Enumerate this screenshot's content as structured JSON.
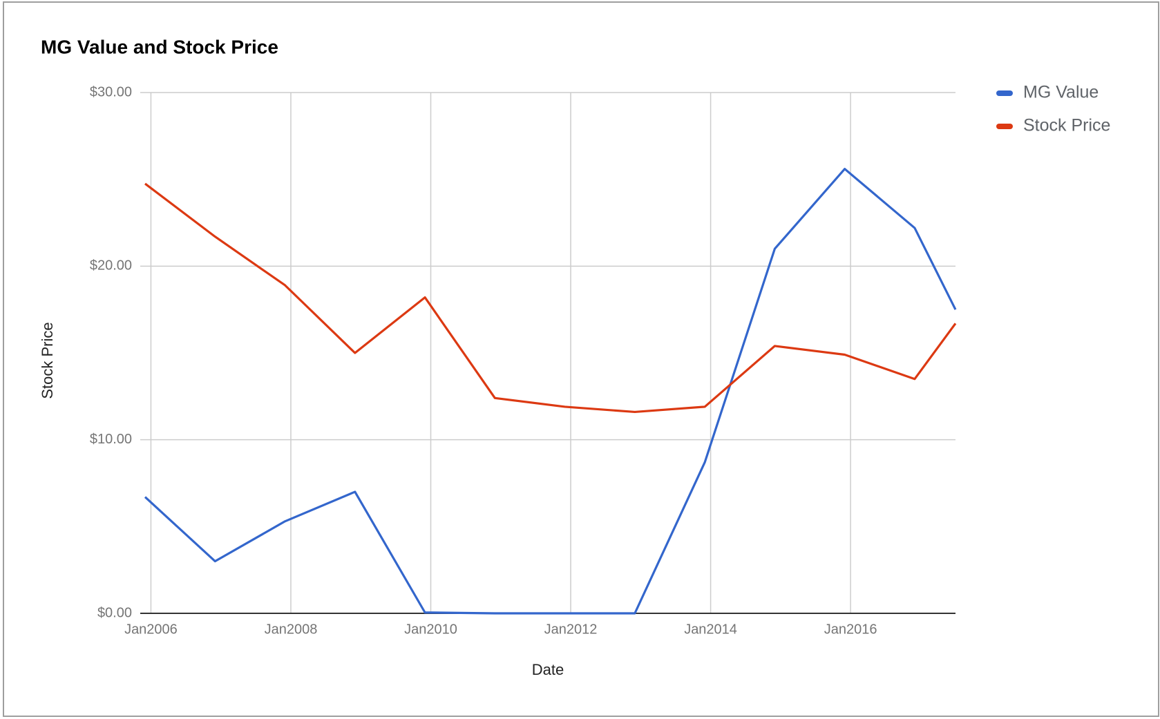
{
  "chart_data": {
    "type": "line",
    "title": "MG Value and Stock Price",
    "x_label": "Date",
    "y_label": "Stock Price",
    "x": [
      "2005-12",
      "2006-12",
      "2007-12",
      "2008-12",
      "2009-12",
      "2010-12",
      "2011-12",
      "2012-12",
      "2013-12",
      "2014-12",
      "2015-12",
      "2016-12",
      "2017-07"
    ],
    "series": [
      {
        "name": "MG Value",
        "color": "#3366cc",
        "values": [
          6.7,
          3.0,
          5.3,
          7.0,
          0.05,
          0.0,
          0.0,
          0.0,
          8.7,
          21.0,
          25.6,
          22.2,
          17.5
        ]
      },
      {
        "name": "Stock Price",
        "color": "#dc3912",
        "values": [
          24.75,
          21.7,
          18.9,
          15.0,
          18.2,
          12.4,
          11.9,
          11.6,
          11.9,
          15.4,
          14.9,
          13.5,
          16.7
        ]
      }
    ],
    "xlim": [
      "2005-12",
      "2017-07"
    ],
    "xticks": [
      {
        "value": "2006-01",
        "label": "Jan2006"
      },
      {
        "value": "2008-01",
        "label": "Jan2008"
      },
      {
        "value": "2010-01",
        "label": "Jan2010"
      },
      {
        "value": "2012-01",
        "label": "Jan2012"
      },
      {
        "value": "2014-01",
        "label": "Jan2014"
      },
      {
        "value": "2016-01",
        "label": "Jan2016"
      }
    ],
    "ylim": [
      0,
      30
    ],
    "yticks": [
      {
        "value": 0,
        "label": "$0.00"
      },
      {
        "value": 10,
        "label": "$10.00"
      },
      {
        "value": 20,
        "label": "$20.00"
      },
      {
        "value": 30,
        "label": "$30.00"
      }
    ],
    "grid": true,
    "legend": "right"
  }
}
